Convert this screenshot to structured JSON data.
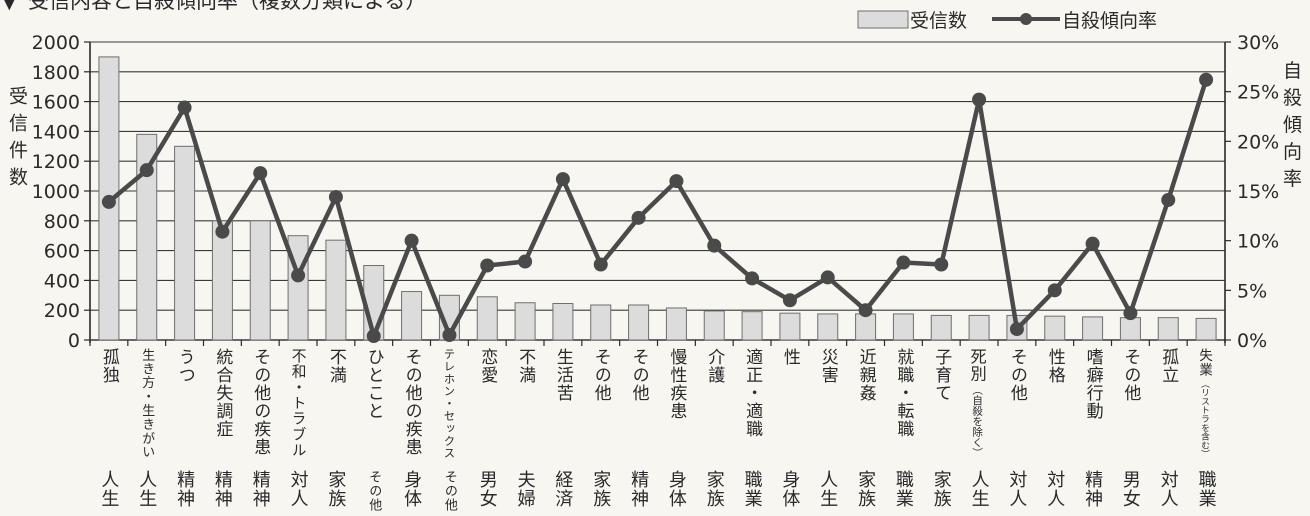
{
  "chart_data": {
    "type": "bar",
    "title": "受信内容と自殺傾向率（複数分類による）",
    "title_marker": "▼",
    "ylabel": "受信件数",
    "y2label": "自殺傾向率",
    "ylim": [
      0,
      2000
    ],
    "y2lim": [
      0,
      30
    ],
    "yticks": [
      "0",
      "200",
      "400",
      "600",
      "800",
      "1000",
      "1200",
      "1400",
      "1600",
      "1800",
      "2000"
    ],
    "y2ticks": [
      "0%",
      "5%",
      "10%",
      "15%",
      "20%",
      "25%",
      "30%"
    ],
    "grid": true,
    "legend_position": "top-right",
    "legend": {
      "bar": "受信数",
      "line": "自殺傾向率"
    },
    "colors": {
      "bar_fill": "#dcdcdc",
      "bar_stroke": "#6f6f6f",
      "line": "#4a4a4a",
      "grid": "#3a3a3a"
    },
    "categories": [
      {
        "label": "孤独",
        "note": "",
        "group": "人生"
      },
      {
        "label": "生き方・生きがい",
        "note": "",
        "group": "人生"
      },
      {
        "label": "うつ",
        "note": "",
        "group": "精神"
      },
      {
        "label": "統合失調症",
        "note": "",
        "group": "精神"
      },
      {
        "label": "その他の疾患",
        "note": "",
        "group": "精神"
      },
      {
        "label": "不和・トラブル",
        "note": "",
        "group": "対人"
      },
      {
        "label": "不満",
        "note": "",
        "group": "家族"
      },
      {
        "label": "ひとこと",
        "note": "",
        "group": "その他"
      },
      {
        "label": "その他の疾患",
        "note": "",
        "group": "身体"
      },
      {
        "label": "テレホン・セックス",
        "note": "",
        "group": "その他"
      },
      {
        "label": "恋愛",
        "note": "",
        "group": "男女"
      },
      {
        "label": "不満",
        "note": "",
        "group": "夫婦"
      },
      {
        "label": "生活苦",
        "note": "",
        "group": "経済"
      },
      {
        "label": "その他",
        "note": "",
        "group": "家族"
      },
      {
        "label": "その他",
        "note": "",
        "group": "精神"
      },
      {
        "label": "慢性疾患",
        "note": "",
        "group": "身体"
      },
      {
        "label": "介護",
        "note": "",
        "group": "家族"
      },
      {
        "label": "適正・適職",
        "note": "",
        "group": "職業"
      },
      {
        "label": "性",
        "note": "",
        "group": "身体"
      },
      {
        "label": "災害",
        "note": "",
        "group": "人生"
      },
      {
        "label": "近親姦",
        "note": "",
        "group": "家族"
      },
      {
        "label": "就職・転職",
        "note": "",
        "group": "職業"
      },
      {
        "label": "子育て",
        "note": "",
        "group": "家族"
      },
      {
        "label": "死別",
        "note": "（自殺を除く）",
        "group": "人生"
      },
      {
        "label": "その他",
        "note": "",
        "group": "対人"
      },
      {
        "label": "性格",
        "note": "",
        "group": "対人"
      },
      {
        "label": "嗜癖行動",
        "note": "",
        "group": "精神"
      },
      {
        "label": "その他",
        "note": "",
        "group": "男女"
      },
      {
        "label": "孤立",
        "note": "",
        "group": "対人"
      },
      {
        "label": "失業",
        "note": "（リストラを含む）",
        "group": "職業"
      }
    ],
    "series": [
      {
        "name": "受信数",
        "type": "bar",
        "axis": "left",
        "values": [
          1900,
          1380,
          1300,
          800,
          800,
          700,
          670,
          500,
          325,
          300,
          290,
          250,
          245,
          235,
          235,
          215,
          195,
          190,
          180,
          175,
          175,
          175,
          165,
          165,
          165,
          160,
          155,
          150,
          150,
          145
        ]
      },
      {
        "name": "自殺傾向率",
        "type": "line",
        "axis": "right",
        "values": [
          13.9,
          17.1,
          23.4,
          10.9,
          16.8,
          6.5,
          14.4,
          0.4,
          10.0,
          0.5,
          7.5,
          7.9,
          16.2,
          7.6,
          12.3,
          16.0,
          9.5,
          6.2,
          4.0,
          6.3,
          3.0,
          7.8,
          7.6,
          24.2,
          1.1,
          5.0,
          9.7,
          2.7,
          14.1,
          26.2
        ]
      }
    ]
  }
}
